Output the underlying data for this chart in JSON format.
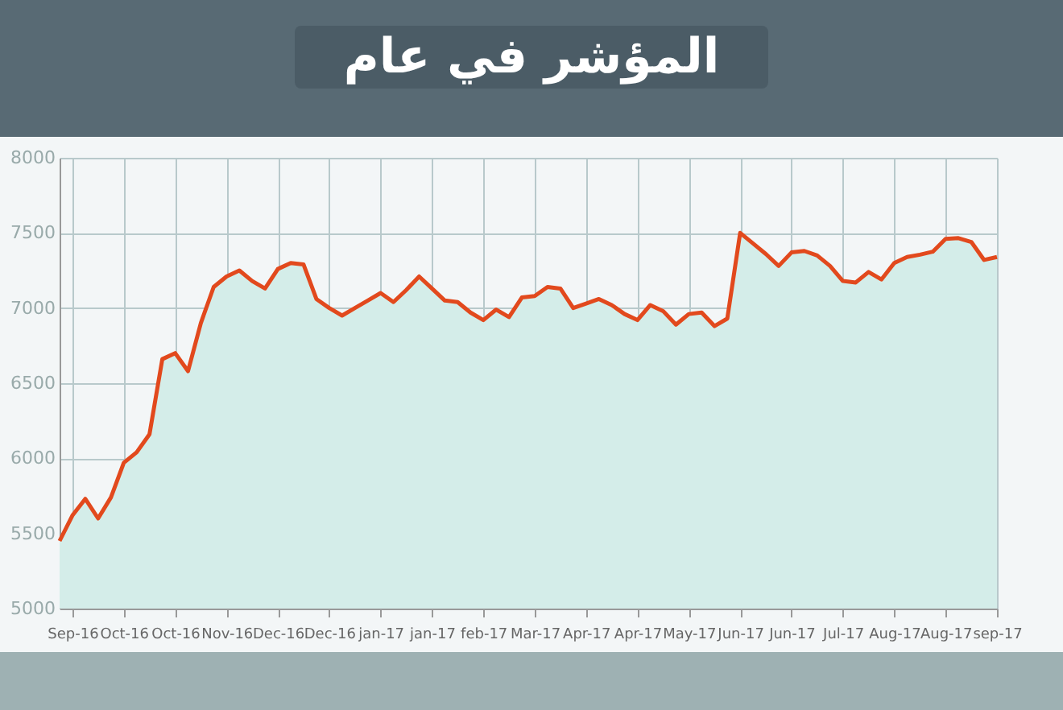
{
  "chart_data": {
    "type": "area",
    "title": "المؤشر في عام",
    "categories": [
      null,
      "Sep-16",
      null,
      null,
      null,
      "Oct-16",
      null,
      null,
      null,
      "Oct-16",
      null,
      null,
      null,
      "Nov-16",
      null,
      null,
      null,
      "Dec-16",
      null,
      null,
      null,
      "Dec-16",
      null,
      null,
      null,
      "jan-17",
      null,
      null,
      null,
      "jan-17",
      null,
      null,
      null,
      "feb-17",
      null,
      null,
      null,
      "Mar-17",
      null,
      null,
      null,
      "Apr-17",
      null,
      null,
      null,
      "Apr-17",
      null,
      null,
      null,
      "May-17",
      null,
      null,
      null,
      "Jun-17",
      null,
      null,
      null,
      "Jun-17",
      null,
      null,
      null,
      "Jul-17",
      null,
      null,
      null,
      "Aug-17",
      null,
      null,
      null,
      "Aug-17",
      null,
      null,
      null,
      "sep-17"
    ],
    "ylim": [
      5000,
      8000
    ],
    "yticks": [
      5000,
      5500,
      6000,
      6500,
      7000,
      7500,
      8000
    ],
    "grid": true,
    "series": [
      {
        "color": "#e2491d",
        "values": [
          5450,
          5620,
          5730,
          5600,
          5740,
          5970,
          6040,
          6160,
          6660,
          6700,
          6580,
          6900,
          7140,
          7210,
          7250,
          7180,
          7130,
          7260,
          7300,
          7290,
          7060,
          7000,
          6950,
          7000,
          7050,
          7100,
          7040,
          7120,
          7210,
          7130,
          7050,
          7040,
          6970,
          6920,
          6990,
          6940,
          7070,
          7080,
          7140,
          7130,
          7000,
          7030,
          7060,
          7020,
          6960,
          6920,
          7020,
          6980,
          6890,
          6960,
          6970,
          6880,
          6930,
          7500,
          7430,
          7360,
          7280,
          7370,
          7380,
          7350,
          7280,
          7180,
          7170,
          7240,
          7190,
          7300,
          7340,
          7355,
          7375,
          7460,
          7465,
          7440,
          7320,
          7340
        ]
      }
    ]
  }
}
